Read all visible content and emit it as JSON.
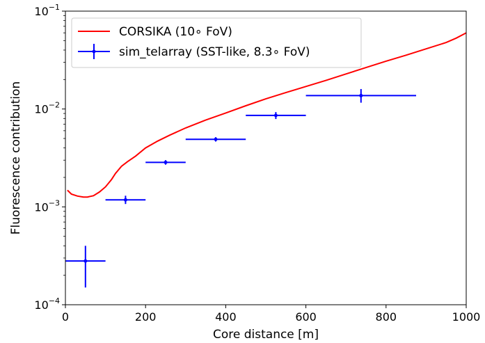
{
  "chart_data": {
    "type": "line",
    "xlabel": "Core distance [m]",
    "ylabel": "Fluorescence contribution",
    "xlim": [
      0,
      1000
    ],
    "ylim": [
      0.0001,
      0.1
    ],
    "yscale": "log",
    "grid": false,
    "legend_position": "top-left",
    "x_ticks": [
      {
        "value": 0,
        "label": "0"
      },
      {
        "value": 200,
        "label": "200"
      },
      {
        "value": 400,
        "label": "400"
      },
      {
        "value": 600,
        "label": "600"
      },
      {
        "value": 800,
        "label": "800"
      },
      {
        "value": 1000,
        "label": "1000"
      }
    ],
    "y_ticks": [
      {
        "value": 0.0001,
        "base": "10",
        "exp": "−4"
      },
      {
        "value": 0.001,
        "base": "10",
        "exp": "−3"
      },
      {
        "value": 0.01,
        "base": "10",
        "exp": "−2"
      },
      {
        "value": 0.1,
        "base": "10",
        "exp": "−1"
      }
    ],
    "series": [
      {
        "name": "CORSIKA (10∘ FoV)",
        "kind": "line",
        "color": "#ff0000",
        "x": [
          5,
          15,
          30,
          45,
          55,
          70,
          85,
          100,
          115,
          125,
          140,
          155,
          175,
          200,
          230,
          260,
          300,
          350,
          400,
          450,
          500,
          550,
          600,
          650,
          700,
          750,
          800,
          850,
          900,
          950,
          975,
          1000
        ],
        "y": [
          0.00148,
          0.00135,
          0.00129,
          0.00126,
          0.00126,
          0.0013,
          0.00142,
          0.0016,
          0.0019,
          0.0022,
          0.0026,
          0.0029,
          0.0033,
          0.004,
          0.0047,
          0.0054,
          0.0064,
          0.0077,
          0.0091,
          0.0108,
          0.0127,
          0.0147,
          0.017,
          0.0196,
          0.0228,
          0.0265,
          0.0308,
          0.0355,
          0.0412,
          0.0478,
          0.053,
          0.06
        ]
      },
      {
        "name": "sim_telarray (SST-like, 8.3∘ FoV)",
        "kind": "errorbar",
        "color": "#0000ff",
        "points": [
          {
            "x": 50,
            "y": 0.00028,
            "xerr": 50,
            "ylo": 0.00015,
            "yhi": 0.0004
          },
          {
            "x": 150,
            "y": 0.00118,
            "xerr": 50,
            "ylo": 0.00107,
            "yhi": 0.0013
          },
          {
            "x": 250,
            "y": 0.00285,
            "xerr": 50,
            "ylo": 0.0027,
            "yhi": 0.003
          },
          {
            "x": 375,
            "y": 0.0049,
            "xerr": 75,
            "ylo": 0.00465,
            "yhi": 0.00515
          },
          {
            "x": 525,
            "y": 0.0086,
            "xerr": 75,
            "ylo": 0.0079,
            "yhi": 0.0093
          },
          {
            "x": 737.5,
            "y": 0.0137,
            "xerr": 137.5,
            "ylo": 0.0116,
            "yhi": 0.016
          }
        ]
      }
    ]
  }
}
